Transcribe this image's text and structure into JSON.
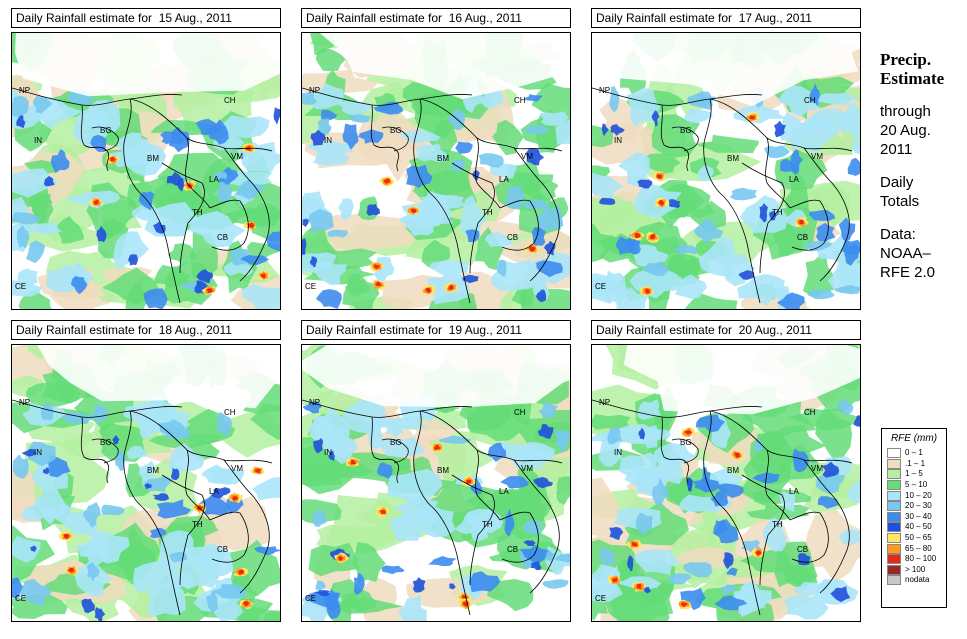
{
  "panels": [
    {
      "title": "Daily Rainfall estimate for  15 Aug., 2011"
    },
    {
      "title": "Daily Rainfall estimate for  16 Aug., 2011"
    },
    {
      "title": "Daily Rainfall estimate for  17 Aug., 2011"
    },
    {
      "title": "Daily Rainfall estimate for  18 Aug., 2011"
    },
    {
      "title": "Daily Rainfall estimate for  19 Aug., 2011"
    },
    {
      "title": "Daily Rainfall estimate for  20 Aug., 2011"
    }
  ],
  "country_labels": [
    "NP",
    "CH",
    "IN",
    "BG",
    "BM",
    "VM",
    "LA",
    "TH",
    "CB",
    "CE"
  ],
  "side_text": {
    "head1": "Precip.",
    "head2": "Estimate",
    "line1": "through",
    "line2": "20 Aug.",
    "line3": "2011",
    "line4": "Daily",
    "line5": "Totals",
    "line6": "Data:",
    "line7": "NOAA–",
    "line8": "RFE 2.0"
  },
  "legend": {
    "title": "RFE (mm)",
    "items": [
      {
        "label": "0 – 1",
        "color": "#ffffff"
      },
      {
        "label": ".1 – 1",
        "color": "#f0dcc0"
      },
      {
        "label": "1 – 5",
        "color": "#b4f0a0"
      },
      {
        "label": "5 – 10",
        "color": "#64dc78"
      },
      {
        "label": "10 – 20",
        "color": "#aae6f8"
      },
      {
        "label": "20 – 30",
        "color": "#78c8f0"
      },
      {
        "label": "30 – 40",
        "color": "#3c8cf0"
      },
      {
        "label": "40 – 50",
        "color": "#1e50dc"
      },
      {
        "label": "50 – 65",
        "color": "#ffe664"
      },
      {
        "label": "65 – 80",
        "color": "#ff9a1e"
      },
      {
        "label": "80 – 100",
        "color": "#e62814"
      },
      {
        "label": "> 100",
        "color": "#962828"
      },
      {
        "label": "nodata",
        "color": "#c8c8c8"
      }
    ]
  }
}
